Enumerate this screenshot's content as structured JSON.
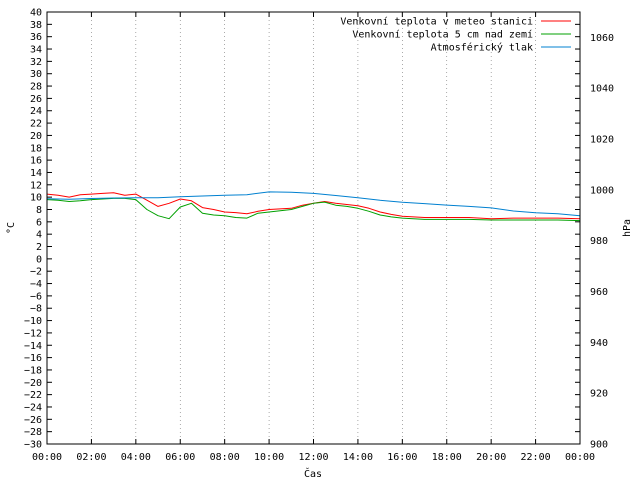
{
  "chart_data": {
    "type": "line",
    "xlabel": "Čas",
    "ylabel": "°C",
    "y2label": "hPa",
    "x_ticks": [
      "00:00",
      "02:00",
      "04:00",
      "06:00",
      "08:00",
      "10:00",
      "12:00",
      "14:00",
      "16:00",
      "18:00",
      "20:00",
      "22:00",
      "00:00"
    ],
    "xlim": [
      0,
      24
    ],
    "ylim": [
      -30,
      40
    ],
    "y_ticks": [
      40,
      38,
      36,
      34,
      32,
      30,
      28,
      26,
      24,
      22,
      20,
      18,
      16,
      14,
      12,
      10,
      8,
      6,
      4,
      2,
      0,
      -2,
      -4,
      -6,
      -8,
      -10,
      -12,
      -14,
      -16,
      -18,
      -20,
      -22,
      -24,
      -26,
      -28,
      -30
    ],
    "y2lim": [
      900,
      1070
    ],
    "y2_ticks": [
      1060,
      1040,
      1020,
      1000,
      980,
      960,
      940,
      920,
      900
    ],
    "grid": true,
    "legend_position": "top-right",
    "series": [
      {
        "name": "Venkovní teplota v meteo stanici",
        "color": "#ff0000",
        "axis": "left",
        "x": [
          0,
          0.5,
          1,
          1.5,
          2,
          2.5,
          3,
          3.5,
          4,
          4.5,
          5,
          5.5,
          6,
          6.5,
          7,
          7.5,
          8,
          8.5,
          9,
          9.5,
          10,
          10.5,
          11,
          11.5,
          12,
          12.5,
          13,
          13.5,
          14,
          14.5,
          15,
          15.5,
          16,
          17,
          18,
          19,
          20,
          21,
          22,
          23,
          24
        ],
        "y": [
          10.5,
          10.3,
          10,
          10.4,
          10.5,
          10.6,
          10.7,
          10.3,
          10.5,
          9.5,
          8.5,
          9,
          9.7,
          9.4,
          8.3,
          8,
          7.6,
          7.5,
          7.3,
          7.7,
          8,
          8.1,
          8.2,
          8.7,
          9,
          9.3,
          9,
          8.8,
          8.6,
          8.2,
          7.6,
          7.2,
          6.9,
          6.7,
          6.7,
          6.7,
          6.5,
          6.6,
          6.6,
          6.6,
          6.5
        ]
      },
      {
        "name": "Venkovní teplota 5 cm nad zemí",
        "color": "#00a000",
        "axis": "left",
        "x": [
          0,
          0.5,
          1,
          1.5,
          2,
          2.5,
          3,
          3.5,
          4,
          4.5,
          5,
          5.5,
          6,
          6.5,
          7,
          7.5,
          8,
          8.5,
          9,
          9.5,
          10,
          10.5,
          11,
          11.5,
          12,
          12.5,
          13,
          13.5,
          14,
          14.5,
          15,
          15.5,
          16,
          17,
          18,
          19,
          20,
          21,
          22,
          23,
          24
        ],
        "y": [
          9.6,
          9.5,
          9.3,
          9.4,
          9.6,
          9.7,
          9.8,
          9.8,
          9.6,
          8,
          7,
          6.5,
          8.4,
          9,
          7.4,
          7.1,
          7,
          6.7,
          6.6,
          7.4,
          7.6,
          7.8,
          8,
          8.5,
          9,
          9.2,
          8.7,
          8.5,
          8.2,
          7.7,
          7.1,
          6.8,
          6.6,
          6.4,
          6.4,
          6.4,
          6.3,
          6.3,
          6.3,
          6.3,
          6.2
        ]
      },
      {
        "name": "Atmosférický tlak",
        "color": "#0080d0",
        "axis": "right",
        "x": [
          0,
          1,
          2,
          3,
          4,
          5,
          6,
          7,
          8,
          9,
          10,
          11,
          12,
          13,
          14,
          15,
          16,
          17,
          18,
          19,
          20,
          21,
          22,
          23,
          24
        ],
        "y": [
          996.5,
          996.3,
          996.6,
          996.8,
          996.9,
          996.9,
          997.3,
          997.6,
          997.9,
          998.1,
          999.2,
          999.1,
          998.6,
          997.8,
          996.9,
          995.9,
          995.1,
          994.6,
          994,
          993.5,
          992.9,
          991.7,
          991,
          990.6,
          989.8
        ]
      }
    ]
  }
}
